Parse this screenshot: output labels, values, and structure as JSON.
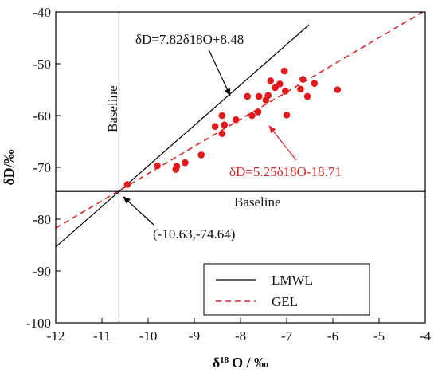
{
  "chart_data": {
    "type": "scatter",
    "xlim": [
      -12,
      -4
    ],
    "ylim": [
      -100,
      -40
    ],
    "x_ticks": [
      -12,
      -11,
      -10,
      -9,
      -8,
      -7,
      -6,
      -5,
      -4
    ],
    "y_ticks": [
      -100,
      -90,
      -80,
      -70,
      -60,
      -50,
      -40
    ],
    "x_tick_labels": [
      "-12",
      "-11",
      "-10",
      "-9",
      "-8",
      "-7",
      "-6",
      "-5",
      "-4"
    ],
    "y_tick_labels": [
      "-100",
      "-90",
      "-80",
      "-70",
      "-60",
      "-50",
      "-40"
    ],
    "xlabel": {
      "delta": "δ",
      "sup": "18",
      "rest": "O / ‰"
    },
    "ylabel": "δD/‰",
    "grid": false,
    "colors": {
      "points": "#e31a1c",
      "gel": "#d62728",
      "lmwl": "#000000",
      "axes": "#000000"
    },
    "lines": [
      {
        "name": "LMWL",
        "slope": 7.82,
        "intercept": 8.48,
        "style": "solid",
        "color": "#000000",
        "x_range": [
          -12,
          -6.52
        ]
      },
      {
        "name": "GEL",
        "slope": 5.25,
        "intercept": -18.71,
        "style": "dashed",
        "color": "#d62728",
        "x_range": [
          -12,
          -4
        ]
      }
    ],
    "baselines": {
      "x": -10.63,
      "y": -74.64,
      "label": "Baseline"
    },
    "annotations": {
      "lmwl_eq": "δD=7.82δ18O+8.48",
      "gel_eq": "δD=5.25δ18O-18.71",
      "intersection": "(-10.63,-74.64)"
    },
    "legend": {
      "position": "bottom-right",
      "entries": [
        "LMWL",
        "GEL"
      ]
    },
    "points": [
      {
        "x": -10.45,
        "y": -73.3
      },
      {
        "x": -9.8,
        "y": -69.7
      },
      {
        "x": -9.4,
        "y": -70.4
      },
      {
        "x": -9.38,
        "y": -69.8
      },
      {
        "x": -9.2,
        "y": -69.1
      },
      {
        "x": -8.85,
        "y": -67.6
      },
      {
        "x": -8.55,
        "y": -62.1
      },
      {
        "x": -8.4,
        "y": -63.5
      },
      {
        "x": -8.35,
        "y": -61.8
      },
      {
        "x": -8.4,
        "y": -60.0
      },
      {
        "x": -8.1,
        "y": -60.8
      },
      {
        "x": -7.85,
        "y": -56.3
      },
      {
        "x": -7.75,
        "y": -60.0
      },
      {
        "x": -7.62,
        "y": -59.3
      },
      {
        "x": -7.6,
        "y": -56.3
      },
      {
        "x": -7.45,
        "y": -57.0
      },
      {
        "x": -7.4,
        "y": -56.1
      },
      {
        "x": -7.35,
        "y": -53.3
      },
      {
        "x": -7.25,
        "y": -54.6
      },
      {
        "x": -7.15,
        "y": -53.9
      },
      {
        "x": -7.05,
        "y": -51.4
      },
      {
        "x": -7.03,
        "y": -55.3
      },
      {
        "x": -7.0,
        "y": -59.9
      },
      {
        "x": -6.7,
        "y": -54.9
      },
      {
        "x": -6.65,
        "y": -53.0
      },
      {
        "x": -6.55,
        "y": -56.3
      },
      {
        "x": -6.4,
        "y": -53.8
      },
      {
        "x": -5.9,
        "y": -55.0
      }
    ]
  }
}
